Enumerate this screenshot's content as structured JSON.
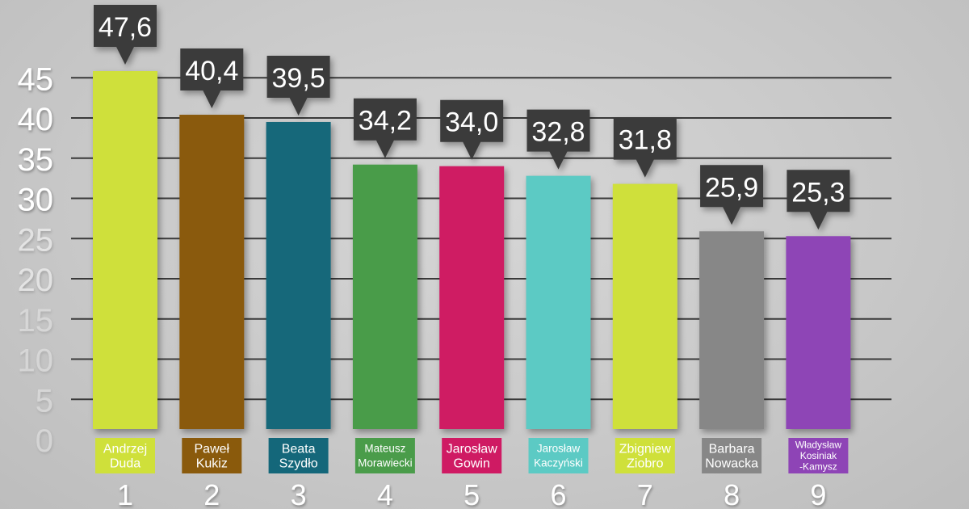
{
  "chart_data": {
    "type": "bar",
    "categories": [
      "1",
      "2",
      "3",
      "4",
      "5",
      "6",
      "7",
      "8",
      "9"
    ],
    "names": [
      [
        "Andrzej",
        "Duda"
      ],
      [
        "Paweł",
        "Kukiz"
      ],
      [
        "Beata",
        "Szydło"
      ],
      [
        "Mateusz",
        "Morawiecki"
      ],
      [
        "Jarosław",
        "Gowin"
      ],
      [
        "Jarosław",
        "Kaczyński"
      ],
      [
        "Zbigniew",
        "Ziobro"
      ],
      [
        "Barbara",
        "Nowacka"
      ],
      [
        "Władysław",
        "Kosiniak",
        "-Kamysz"
      ]
    ],
    "values": [
      47.6,
      40.4,
      39.5,
      34.2,
      34.0,
      32.8,
      31.8,
      25.9,
      25.3
    ],
    "value_labels": [
      "47,6",
      "40,4",
      "39,5",
      "34,2",
      "34,0",
      "32,8",
      "31,8",
      "25,9",
      "25,3"
    ],
    "colors": [
      "#cfe03a",
      "#8a5a0c",
      "#14677a",
      "#4a9c4a",
      "#cf1a63",
      "#5ccac4",
      "#cfe03a",
      "#878787",
      "#8e44b6"
    ],
    "yticks": [
      0,
      5,
      10,
      15,
      20,
      25,
      30,
      35,
      40,
      45
    ],
    "ylim": [
      0,
      45
    ],
    "grid": true,
    "legend": "none"
  }
}
